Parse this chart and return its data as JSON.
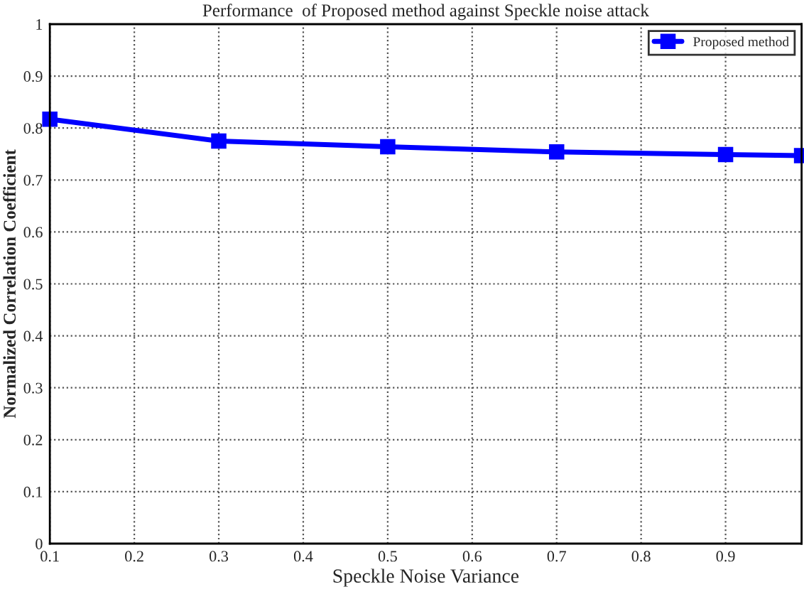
{
  "chart_data": {
    "type": "line",
    "title": "Performance  of Proposed method against Speckle noise attack",
    "xlabel": "Speckle Noise Variance",
    "ylabel": "Normalized Correlation Coefficient",
    "x": [
      0.1,
      0.3,
      0.5,
      0.7,
      0.9,
      0.99
    ],
    "series": [
      {
        "name": "Proposed method",
        "color": "#0000ff",
        "values": [
          0.817,
          0.775,
          0.764,
          0.754,
          0.749,
          0.747
        ]
      }
    ],
    "xlim": [
      0.1,
      0.99
    ],
    "xticks": [
      0.1,
      0.2,
      0.3,
      0.4,
      0.5,
      0.6,
      0.7,
      0.8,
      0.9
    ],
    "ylim": [
      0,
      1
    ],
    "yticks": [
      0,
      0.1,
      0.2,
      0.3,
      0.4,
      0.5,
      0.6,
      0.7,
      0.8,
      0.9,
      1
    ],
    "grid": true,
    "legend": "top right",
    "marker": "square",
    "line_style": "solid"
  }
}
